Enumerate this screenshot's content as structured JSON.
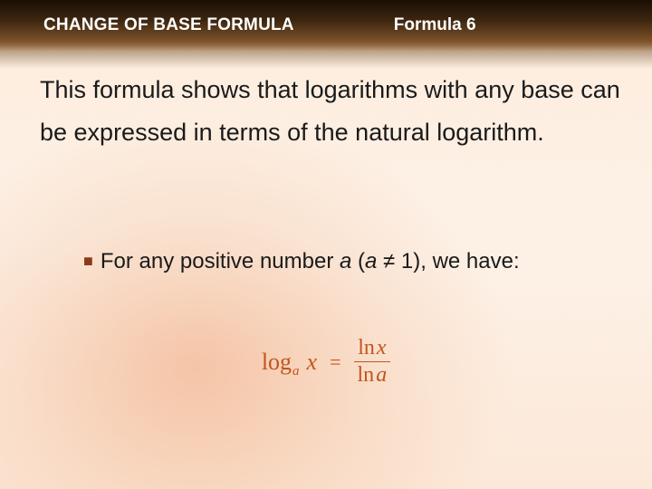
{
  "header": {
    "title": "CHANGE OF BASE FORMULA",
    "subtitle": "Formula 6"
  },
  "paragraph": "This formula shows that logarithms with any base can be expressed in terms of the natural logarithm.",
  "bullet": {
    "marker": "■",
    "prefix": "For any positive number ",
    "var1": "a",
    "mid": " (",
    "var2": "a",
    "neq": " ≠ 1), we have:"
  },
  "formula": {
    "log": "log",
    "base": "a",
    "arg": "x",
    "eq": "=",
    "num_fn": "ln",
    "num_var": "x",
    "den_fn": "ln",
    "den_var": "a"
  },
  "colors": {
    "formula_color": "#c0561e",
    "bullet_color": "#8b3a1a",
    "text_color": "#1a1a1a",
    "header_text": "#ffffff"
  },
  "typography": {
    "header_fontsize": 19,
    "body_fontsize": 27,
    "bullet_fontsize": 24,
    "formula_fontsize": 26
  }
}
